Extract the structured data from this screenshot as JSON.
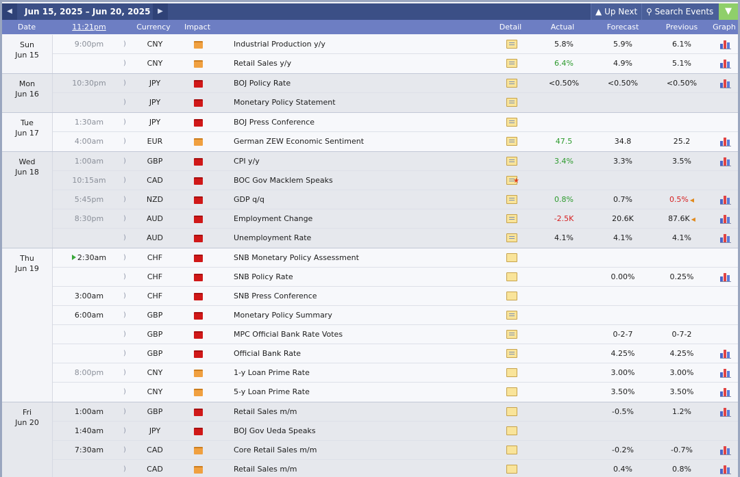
{
  "toolbar": {
    "date_range": "Jun 15, 2025 – Jun 20, 2025",
    "up_next": "Up Next",
    "search_events": "Search Events"
  },
  "header": {
    "date": "Date",
    "time": "11:21pm",
    "currency": "Currency",
    "impact": "Impact",
    "detail": "Detail",
    "actual": "Actual",
    "forecast": "Forecast",
    "previous": "Previous",
    "graph": "Graph"
  },
  "colors": {
    "topbar": "#3b4f86",
    "header": "#6d7ec3",
    "high_impact": "#d01818",
    "medium_impact": "#f0a040",
    "better": "#2c9a2c",
    "worse": "#d62020"
  },
  "days": [
    {
      "weekday": "Sun",
      "date": "Jun 15",
      "shaded": false,
      "events": [
        {
          "time": "9:00pm",
          "currency": "CNY",
          "impact": "medium",
          "name": "Industrial Production y/y",
          "detail": "lines",
          "actual": "5.8%",
          "actual_class": "",
          "forecast": "5.9%",
          "previous": "6.1%",
          "previous_class": "",
          "revised": false,
          "graph": true
        },
        {
          "time": "",
          "currency": "CNY",
          "impact": "medium",
          "name": "Retail Sales y/y",
          "detail": "lines",
          "actual": "6.4%",
          "actual_class": "green",
          "forecast": "4.9%",
          "previous": "5.1%",
          "previous_class": "",
          "revised": false,
          "graph": true
        }
      ]
    },
    {
      "weekday": "Mon",
      "date": "Jun 16",
      "shaded": true,
      "events": [
        {
          "time": "10:30pm",
          "currency": "JPY",
          "impact": "high",
          "name": "BOJ Policy Rate",
          "detail": "lines",
          "actual": "<0.50%",
          "actual_class": "",
          "forecast": "<0.50%",
          "previous": "<0.50%",
          "previous_class": "",
          "revised": false,
          "graph": true
        },
        {
          "time": "",
          "currency": "JPY",
          "impact": "high",
          "name": "Monetary Policy Statement",
          "detail": "lines",
          "actual": "",
          "actual_class": "",
          "forecast": "",
          "previous": "",
          "previous_class": "",
          "revised": false,
          "graph": false
        }
      ]
    },
    {
      "weekday": "Tue",
      "date": "Jun 17",
      "shaded": false,
      "events": [
        {
          "time": "1:30am",
          "currency": "JPY",
          "impact": "high",
          "name": "BOJ Press Conference",
          "detail": "lines",
          "actual": "",
          "actual_class": "",
          "forecast": "",
          "previous": "",
          "previous_class": "",
          "revised": false,
          "graph": false
        },
        {
          "time": "4:00am",
          "currency": "EUR",
          "impact": "medium",
          "name": "German ZEW Economic Sentiment",
          "detail": "lines",
          "actual": "47.5",
          "actual_class": "green",
          "forecast": "34.8",
          "previous": "25.2",
          "previous_class": "",
          "revised": false,
          "graph": true
        }
      ]
    },
    {
      "weekday": "Wed",
      "date": "Jun 18",
      "shaded": true,
      "events": [
        {
          "time": "1:00am",
          "currency": "GBP",
          "impact": "high",
          "name": "CPI y/y",
          "detail": "lines",
          "actual": "3.4%",
          "actual_class": "green",
          "forecast": "3.3%",
          "previous": "3.5%",
          "previous_class": "",
          "revised": false,
          "graph": true
        },
        {
          "time": "10:15am",
          "currency": "CAD",
          "impact": "high",
          "name": "BOC Gov Macklem Speaks",
          "detail": "star",
          "actual": "",
          "actual_class": "",
          "forecast": "",
          "previous": "",
          "previous_class": "",
          "revised": false,
          "graph": false
        },
        {
          "time": "5:45pm",
          "currency": "NZD",
          "impact": "high",
          "name": "GDP q/q",
          "detail": "lines",
          "actual": "0.8%",
          "actual_class": "green",
          "forecast": "0.7%",
          "previous": "0.5%",
          "previous_class": "red",
          "revised": true,
          "graph": true
        },
        {
          "time": "8:30pm",
          "currency": "AUD",
          "impact": "high",
          "name": "Employment Change",
          "detail": "lines",
          "actual": "-2.5K",
          "actual_class": "red",
          "forecast": "20.6K",
          "previous": "87.6K",
          "previous_class": "",
          "revised": true,
          "graph": true
        },
        {
          "time": "",
          "currency": "AUD",
          "impact": "high",
          "name": "Unemployment Rate",
          "detail": "lines",
          "actual": "4.1%",
          "actual_class": "",
          "forecast": "4.1%",
          "previous": "4.1%",
          "previous_class": "",
          "revised": false,
          "graph": true
        }
      ]
    },
    {
      "weekday": "Thu",
      "date": "Jun 19",
      "shaded": false,
      "events": [
        {
          "time": "2:30am",
          "time_current": true,
          "currency": "CHF",
          "impact": "high",
          "name": "SNB Monetary Policy Assessment",
          "detail": "plain",
          "actual": "",
          "actual_class": "",
          "forecast": "",
          "previous": "",
          "previous_class": "",
          "revised": false,
          "graph": false
        },
        {
          "time": "",
          "currency": "CHF",
          "impact": "high",
          "name": "SNB Policy Rate",
          "detail": "plain",
          "actual": "",
          "actual_class": "",
          "forecast": "0.00%",
          "previous": "0.25%",
          "previous_class": "",
          "revised": false,
          "graph": true
        },
        {
          "time": "3:00am",
          "currency": "CHF",
          "impact": "high",
          "name": "SNB Press Conference",
          "detail": "plain",
          "actual": "",
          "actual_class": "",
          "forecast": "",
          "previous": "",
          "previous_class": "",
          "revised": false,
          "graph": false
        },
        {
          "time": "6:00am",
          "currency": "GBP",
          "impact": "high",
          "name": "Monetary Policy Summary",
          "detail": "lines",
          "actual": "",
          "actual_class": "",
          "forecast": "",
          "previous": "",
          "previous_class": "",
          "revised": false,
          "graph": false
        },
        {
          "time": "",
          "currency": "GBP",
          "impact": "high",
          "name": "MPC Official Bank Rate Votes",
          "detail": "lines",
          "actual": "",
          "actual_class": "",
          "forecast": "0-2-7",
          "previous": "0-7-2",
          "previous_class": "",
          "revised": false,
          "graph": false
        },
        {
          "time": "",
          "currency": "GBP",
          "impact": "high",
          "name": "Official Bank Rate",
          "detail": "lines",
          "actual": "",
          "actual_class": "",
          "forecast": "4.25%",
          "previous": "4.25%",
          "previous_class": "",
          "revised": false,
          "graph": true
        },
        {
          "time": "8:00pm",
          "currency": "CNY",
          "impact": "medium",
          "name": "1-y Loan Prime Rate",
          "detail": "plain",
          "actual": "",
          "actual_class": "",
          "forecast": "3.00%",
          "previous": "3.00%",
          "previous_class": "",
          "revised": false,
          "graph": true
        },
        {
          "time": "",
          "currency": "CNY",
          "impact": "medium",
          "name": "5-y Loan Prime Rate",
          "detail": "plain",
          "actual": "",
          "actual_class": "",
          "forecast": "3.50%",
          "previous": "3.50%",
          "previous_class": "",
          "revised": false,
          "graph": true
        }
      ]
    },
    {
      "weekday": "Fri",
      "date": "Jun 20",
      "shaded": true,
      "events": [
        {
          "time": "1:00am",
          "currency": "GBP",
          "impact": "high",
          "name": "Retail Sales m/m",
          "detail": "plain",
          "actual": "",
          "actual_class": "",
          "forecast": "-0.5%",
          "previous": "1.2%",
          "previous_class": "",
          "revised": false,
          "graph": true
        },
        {
          "time": "1:40am",
          "currency": "JPY",
          "impact": "high",
          "name": "BOJ Gov Ueda Speaks",
          "detail": "plain",
          "actual": "",
          "actual_class": "",
          "forecast": "",
          "previous": "",
          "previous_class": "",
          "revised": false,
          "graph": false
        },
        {
          "time": "7:30am",
          "currency": "CAD",
          "impact": "medium",
          "name": "Core Retail Sales m/m",
          "detail": "plain",
          "actual": "",
          "actual_class": "",
          "forecast": "-0.2%",
          "previous": "-0.7%",
          "previous_class": "",
          "revised": false,
          "graph": true
        },
        {
          "time": "",
          "currency": "CAD",
          "impact": "medium",
          "name": "Retail Sales m/m",
          "detail": "plain",
          "actual": "",
          "actual_class": "",
          "forecast": "0.4%",
          "previous": "0.8%",
          "previous_class": "",
          "revised": false,
          "graph": true
        }
      ]
    }
  ]
}
